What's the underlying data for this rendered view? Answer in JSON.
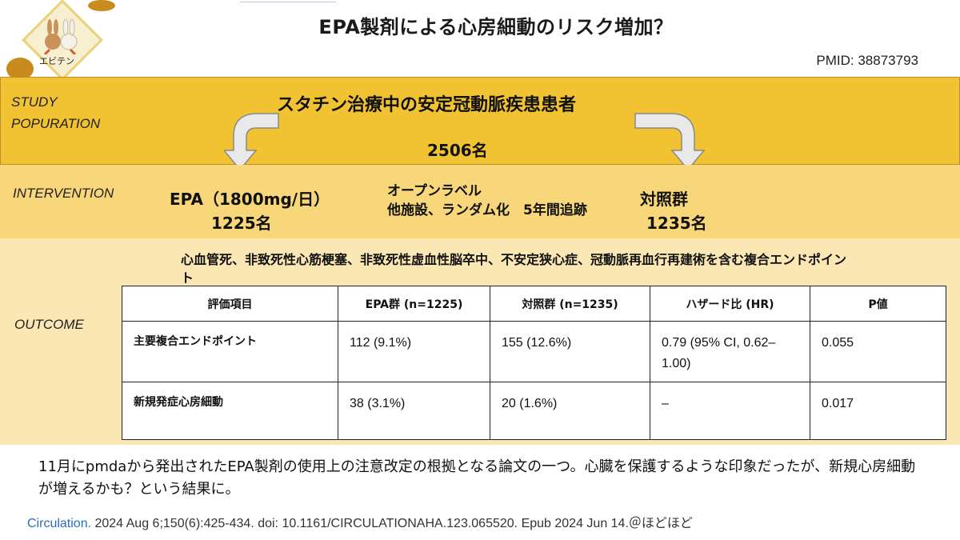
{
  "header": {
    "title": "EPA製剤による心房細動のリスク増加？",
    "pmid": "PMID: 38873793",
    "logo_text": "エビテン"
  },
  "study_population": {
    "label_line1": "STUDY",
    "label_line2": "POPURATION",
    "description": "スタチン治療中の安定冠動脈疾患患者",
    "total": "2506名"
  },
  "intervention": {
    "label": "INTERVENTION",
    "epa_label": "EPA（1800mg/日）",
    "epa_n": "1225名",
    "design_line1": "オープンラベル",
    "design_line2": "他施設、ランダム化　5年間追跡",
    "control_label": "対照群",
    "control_n": "1235名"
  },
  "outcome": {
    "label": "OUTCOME",
    "definition": "心血管死、非致死性心筋梗塞、非致死性虚血性脳卒中、不安定狭心症、冠動脈再血行再建術を含む複合エンドポイント",
    "table": {
      "headers": [
        "評価項目",
        "EPA群 (n=1225)",
        "対照群 (n=1235)",
        "ハザード比 (HR)",
        "P値"
      ],
      "rows": [
        [
          "主要複合エンドポイント",
          "112 (9.1%)",
          "155 (12.6%)",
          "0.79 (95% CI, 0.62–1.00)",
          "0.055"
        ],
        [
          "新規発症心房細動",
          "38 (3.1%)",
          "20 (1.6%)",
          "–",
          "0.017"
        ]
      ]
    }
  },
  "footer": {
    "note": "11月にpmdaから発出されたEPA製剤の使用上の注意改定の根拠となる論文の一つ。心臓を保護するような印象だったが、新規心房細動が増えるかも？という結果に。",
    "citation_journal": "Circulation.",
    "citation_rest": " 2024 Aug 6;150(6):425-434. doi: 10.1161/CIRCULATIONAHA.123.065520. Epub 2024 Jun 14.＠ほどほど"
  }
}
